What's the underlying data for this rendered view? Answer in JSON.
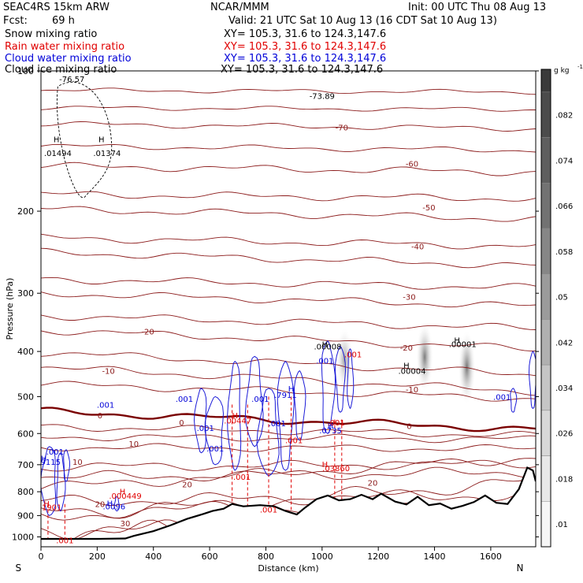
{
  "header": {
    "model": "SEAC4RS 15km ARW",
    "center": "NCAR/MMM",
    "init": "Init: 00 UTC Thu 08 Aug 13",
    "fcst_label": "Fcst:",
    "fcst_value": "69 h",
    "valid": "Valid: 21 UTC Sat 10 Aug 13 (16 CDT Sat 10 Aug 13)",
    "fields": [
      {
        "name": "Snow mixing ratio",
        "xy": "XY= 105.3, 31.6 to 124.3,147.6",
        "color": "#000000"
      },
      {
        "name": "Rain water mixing ratio",
        "xy": "XY= 105.3, 31.6 to 124.3,147.6",
        "color": "#e00000"
      },
      {
        "name": "Cloud water mixing ratio",
        "xy": "XY= 105.3, 31.6 to 124.3,147.6",
        "color": "#0000d8"
      },
      {
        "name": "Cloud ice mixing ratio",
        "xy": "XY= 105.3, 31.6 to 124.3,147.6",
        "color": "#000000"
      }
    ]
  },
  "chart_data": {
    "type": "cross-section",
    "xlabel": "Distance (km)",
    "ylabel": "Pressure (hPa)",
    "xlim": [
      0,
      1760
    ],
    "ylim": [
      1050,
      100
    ],
    "y_scale": "log",
    "x_ticks": [
      0,
      200,
      400,
      600,
      800,
      1000,
      1200,
      1400,
      1600
    ],
    "y_ticks": [
      100,
      200,
      300,
      400,
      500,
      600,
      700,
      800,
      900,
      1000
    ],
    "endpoints": {
      "left": "S",
      "right": "N"
    },
    "colorbar": {
      "unit": "g kg",
      "unit_exp": "-1",
      "labels": [
        ".082",
        ".074",
        ".066",
        ".058",
        ".05",
        ".042",
        ".034",
        ".026",
        ".018",
        ".01"
      ],
      "colors": [
        "#4b4b4b",
        "#5e5e5e",
        "#727272",
        "#868686",
        "#9b9b9b",
        "#b0b0b0",
        "#c5c5c5",
        "#d8d8d8",
        "#e8e8e8",
        "#f6f6f6"
      ]
    },
    "temperature_isotherms_C": [
      {
        "value": 30,
        "label_x": 300,
        "label_p": 935
      },
      {
        "value": 20,
        "label_x": 520,
        "label_p": 770
      },
      {
        "value": 20,
        "label_x": 210,
        "label_p": 850
      },
      {
        "value": 20,
        "label_x": 1180,
        "label_p": 765
      },
      {
        "value": 10,
        "label_x": 130,
        "label_p": 690
      },
      {
        "value": 10,
        "label_x": 330,
        "label_p": 630
      },
      {
        "value": 0,
        "label_x": 210,
        "label_p": 548
      },
      {
        "value": 0,
        "label_x": 500,
        "label_p": 568
      },
      {
        "value": 0,
        "label_x": 1310,
        "label_p": 578
      },
      {
        "value": -10,
        "label_x": 240,
        "label_p": 440
      },
      {
        "value": -10,
        "label_x": 1320,
        "label_p": 482
      },
      {
        "value": -20,
        "label_x": 380,
        "label_p": 362
      },
      {
        "value": -20,
        "label_x": 1300,
        "label_p": 392
      },
      {
        "value": -30,
        "label_x": 1310,
        "label_p": 305
      },
      {
        "value": -40,
        "label_x": 1340,
        "label_p": 238
      },
      {
        "value": -50,
        "label_x": 1380,
        "label_p": 196
      },
      {
        "value": -60,
        "label_x": 1320,
        "label_p": 158
      },
      {
        "value": -70,
        "label_x": 1070,
        "label_p": 132
      }
    ],
    "isotherm_labels_text": [
      "30",
      "30",
      "20",
      "20",
      "20",
      "10",
      "10",
      "0",
      "0",
      "0",
      "-10",
      "-10",
      "-20",
      "-20",
      "-30",
      "-30",
      "-30",
      "-40",
      "-50",
      "-60",
      "-70"
    ],
    "extra_temps": [
      "-76.57",
      "-73.89"
    ],
    "maxima_labels": [
      {
        "text": ".01494",
        "color": "#000000",
        "x": 60,
        "p": 150
      },
      {
        "text": ".01374",
        "color": "#000000",
        "x": 235,
        "p": 150
      },
      {
        "text": ".00008",
        "color": "#000000",
        "x": 1020,
        "p": 390
      },
      {
        "text": ".00004",
        "color": "#000000",
        "x": 1320,
        "p": 440
      },
      {
        "text": ".00001",
        "color": "#000000",
        "x": 1500,
        "p": 385
      },
      {
        "text": ".01901",
        "color": "#e00000",
        "x": 25,
        "p": 862
      },
      {
        "text": ".000449",
        "color": "#e00000",
        "x": 300,
        "p": 815
      },
      {
        "text": ".00447",
        "color": "#e00000",
        "x": 700,
        "p": 562
      },
      {
        "text": ".03860",
        "color": "#e00000",
        "x": 1050,
        "p": 712
      },
      {
        "text": ".9115",
        "color": "#0000d8",
        "x": 30,
        "p": 690
      },
      {
        "text": ".0096",
        "color": "#0000d8",
        "x": 260,
        "p": 860
      },
      {
        "text": ".7911",
        "color": "#0000d8",
        "x": 870,
        "p": 495
      },
      {
        "text": ".0735",
        "color": "#0000d8",
        "x": 1030,
        "p": 590
      }
    ],
    "small_contour_labels": [
      {
        "text": ".001",
        "color": "#0000d8",
        "x": 50,
        "p": 655
      },
      {
        "text": ".001",
        "color": "#0000d8",
        "x": 230,
        "p": 520
      },
      {
        "text": ".001",
        "color": "#0000d8",
        "x": 510,
        "p": 505
      },
      {
        "text": ".001",
        "color": "#0000d8",
        "x": 585,
        "p": 583
      },
      {
        "text": ".001",
        "color": "#0000d8",
        "x": 780,
        "p": 505
      },
      {
        "text": ".001",
        "color": "#0000d8",
        "x": 840,
        "p": 570
      },
      {
        "text": ".001",
        "color": "#0000d8",
        "x": 1010,
        "p": 418
      },
      {
        "text": ".001",
        "color": "#0000d8",
        "x": 1640,
        "p": 500
      },
      {
        "text": ".001",
        "color": "#0000d8",
        "x": 620,
        "p": 645
      },
      {
        "text": ".001",
        "color": "#e00000",
        "x": 810,
        "p": 872
      },
      {
        "text": ".001",
        "color": "#e00000",
        "x": 900,
        "p": 620
      },
      {
        "text": ".001",
        "color": "#e00000",
        "x": 715,
        "p": 742
      },
      {
        "text": ".001",
        "color": "#e00000",
        "x": 1050,
        "p": 568
      },
      {
        "text": ".001",
        "color": "#e00000",
        "x": 85,
        "p": 1015
      },
      {
        "text": ".001",
        "color": "#e00000",
        "x": 1110,
        "p": 405
      }
    ],
    "h_markers": [
      {
        "x": 55,
        "p": 140,
        "color": "#000000"
      },
      {
        "x": 215,
        "p": 140,
        "color": "#000000"
      },
      {
        "x": 1010,
        "p": 385,
        "color": "#000000"
      },
      {
        "x": 1300,
        "p": 428,
        "color": "#000000"
      },
      {
        "x": 1480,
        "p": 378,
        "color": "#000000"
      },
      {
        "x": 20,
        "p": 848,
        "color": "#e00000"
      },
      {
        "x": 290,
        "p": 798,
        "color": "#e00000"
      },
      {
        "x": 690,
        "p": 548,
        "color": "#e00000"
      },
      {
        "x": 1010,
        "p": 698,
        "color": "#e00000"
      },
      {
        "x": 10,
        "p": 678,
        "color": "#0000d8"
      },
      {
        "x": 245,
        "p": 846,
        "color": "#0000d8"
      },
      {
        "x": 890,
        "p": 480,
        "color": "#0000d8"
      },
      {
        "x": 1030,
        "p": 577,
        "color": "#0000d8"
      }
    ],
    "terrain_pressure_hPa": [
      [
        0,
        1010
      ],
      [
        100,
        1010
      ],
      [
        200,
        1010
      ],
      [
        300,
        1008
      ],
      [
        330,
        995
      ],
      [
        400,
        972
      ],
      [
        460,
        945
      ],
      [
        520,
        915
      ],
      [
        580,
        892
      ],
      [
        610,
        880
      ],
      [
        650,
        870
      ],
      [
        680,
        850
      ],
      [
        720,
        860
      ],
      [
        780,
        855
      ],
      [
        830,
        860
      ],
      [
        870,
        880
      ],
      [
        910,
        895
      ],
      [
        940,
        865
      ],
      [
        980,
        830
      ],
      [
        1020,
        815
      ],
      [
        1060,
        835
      ],
      [
        1100,
        830
      ],
      [
        1140,
        812
      ],
      [
        1180,
        830
      ],
      [
        1210,
        808
      ],
      [
        1260,
        840
      ],
      [
        1300,
        852
      ],
      [
        1340,
        820
      ],
      [
        1380,
        855
      ],
      [
        1420,
        848
      ],
      [
        1460,
        870
      ],
      [
        1500,
        858
      ],
      [
        1540,
        842
      ],
      [
        1580,
        815
      ],
      [
        1620,
        845
      ],
      [
        1660,
        850
      ],
      [
        1700,
        790
      ],
      [
        1730,
        710
      ],
      [
        1750,
        720
      ],
      [
        1760,
        760
      ]
    ],
    "snow_plumes": [
      {
        "x": 1080,
        "p_top": 355,
        "p_bottom": 490,
        "intensity": 0.55
      },
      {
        "x": 1365,
        "p_top": 345,
        "p_bottom": 490,
        "intensity": 0.75
      },
      {
        "x": 1515,
        "p_top": 360,
        "p_bottom": 520,
        "intensity": 0.8
      }
    ]
  }
}
